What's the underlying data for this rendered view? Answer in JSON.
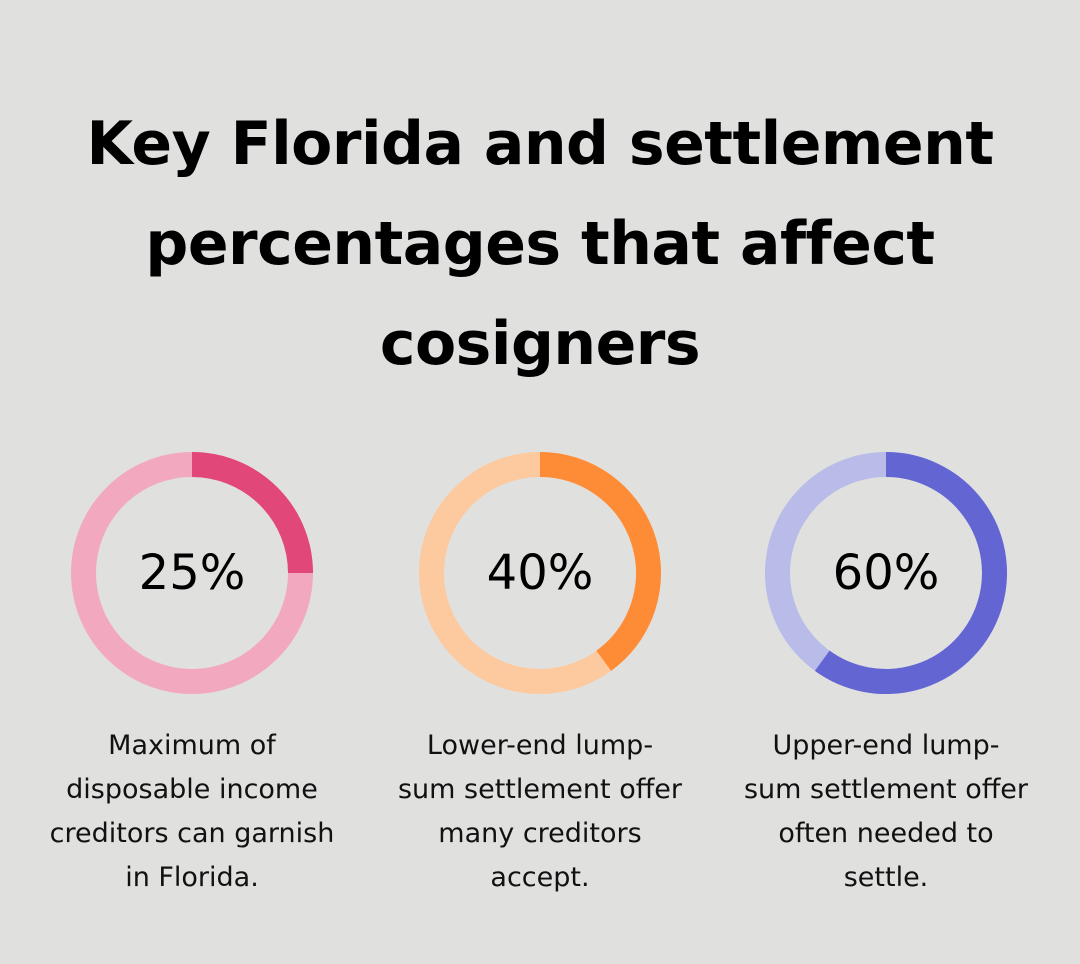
{
  "title": {
    "lines": [
      "Key Florida and settlement",
      "percentages that affect",
      "cosigners"
    ]
  },
  "chart_data": [
    {
      "type": "pie",
      "value": 25,
      "label": "25%",
      "description_lines": [
        "Maximum of",
        "disposable income",
        "creditors can garnish",
        "in Florida."
      ],
      "colors": {
        "filled": "#e2477a",
        "track": "#f2a9c0"
      }
    },
    {
      "type": "pie",
      "value": 40,
      "label": "40%",
      "description_lines": [
        "Lower-end lump-",
        "sum settlement offer",
        "many creditors",
        "accept."
      ],
      "colors": {
        "filled": "#fe8c36",
        "track": "#fdc99e"
      }
    },
    {
      "type": "pie",
      "value": 60,
      "label": "60%",
      "description_lines": [
        "Upper-end lump-",
        "sum settlement offer",
        "often needed to",
        "settle."
      ],
      "colors": {
        "filled": "#6365d3",
        "track": "#b9bbe9"
      }
    }
  ]
}
